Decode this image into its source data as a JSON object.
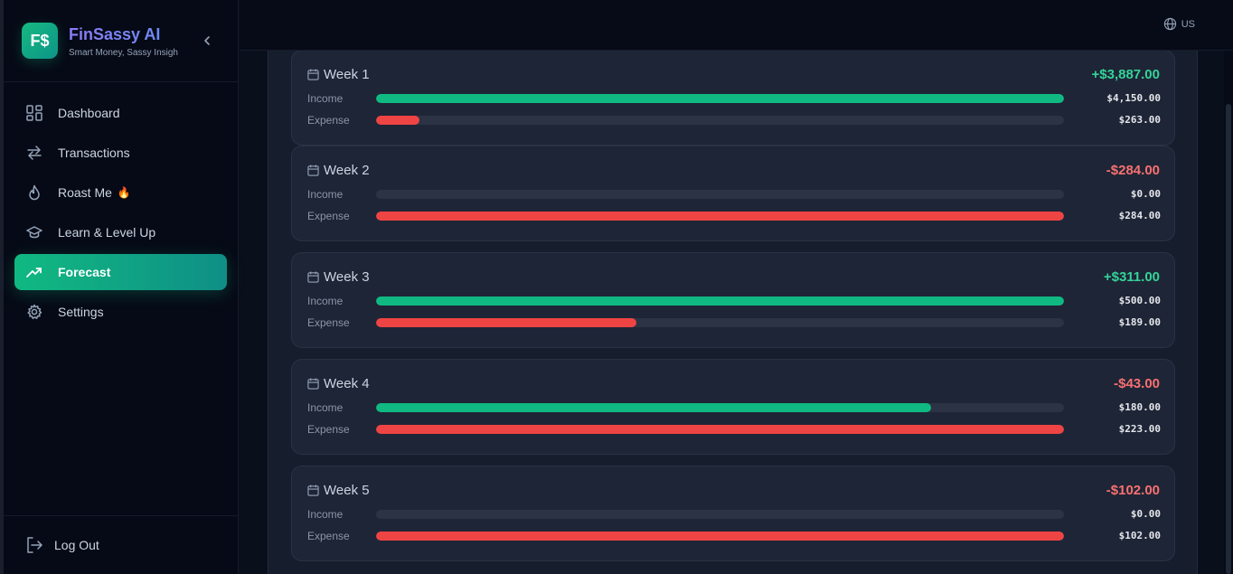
{
  "brand": {
    "logo": "F$",
    "title": "FinSassy AI",
    "subtitle": "Smart Money, Sassy Insigh"
  },
  "sidebar": {
    "items": [
      {
        "label": "Dashboard",
        "icon": "dashboard-icon",
        "active": false
      },
      {
        "label": "Transactions",
        "icon": "arrows-icon",
        "active": false
      },
      {
        "label": "Roast Me",
        "icon": "flame-icon",
        "active": false,
        "emoji": "🔥"
      },
      {
        "label": "Learn & Level Up",
        "icon": "graduation-cap-icon",
        "active": false
      },
      {
        "label": "Forecast",
        "icon": "trending-up-icon",
        "active": true
      },
      {
        "label": "Settings",
        "icon": "gear-icon",
        "active": false
      }
    ],
    "logout_label": "Log Out"
  },
  "topbar": {
    "language": "US"
  },
  "labels": {
    "income": "Income",
    "expense": "Expense"
  },
  "weeks": [
    {
      "title": "Week 1",
      "net": "+$3,887.00",
      "positive": true,
      "income": "$4,150.00",
      "expense": "$263.00",
      "income_pct": 100,
      "expense_pct": 6.3
    },
    {
      "title": "Week 2",
      "net": "-$284.00",
      "positive": false,
      "income": "$0.00",
      "expense": "$284.00",
      "income_pct": 0,
      "expense_pct": 100
    },
    {
      "title": "Week 3",
      "net": "+$311.00",
      "positive": true,
      "income": "$500.00",
      "expense": "$189.00",
      "income_pct": 100,
      "expense_pct": 37.8
    },
    {
      "title": "Week 4",
      "net": "-$43.00",
      "positive": false,
      "income": "$180.00",
      "expense": "$223.00",
      "income_pct": 80.7,
      "expense_pct": 100
    },
    {
      "title": "Week 5",
      "net": "-$102.00",
      "positive": false,
      "income": "$0.00",
      "expense": "$102.00",
      "income_pct": 0,
      "expense_pct": 100
    }
  ],
  "colors": {
    "accent": "#10b981",
    "income": "#10b981",
    "expense": "#ef4444",
    "positive": "#34d399",
    "negative": "#f87171"
  }
}
